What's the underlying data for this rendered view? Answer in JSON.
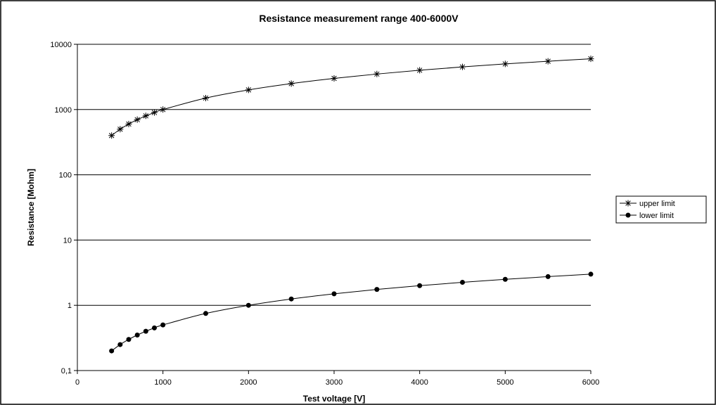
{
  "chart_data": {
    "type": "line",
    "title": "Resistance measurement range 400-6000V",
    "xlabel": "Test voltage [V]",
    "ylabel": "Resistance [Mohm]",
    "xlim": [
      0,
      6000
    ],
    "ylim": [
      0.1,
      10000
    ],
    "yscale": "log",
    "grid": "horizontal major gridlines",
    "legend": "right",
    "x_ticks": [
      "0",
      "1000",
      "2000",
      "3000",
      "4000",
      "5000",
      "6000"
    ],
    "x_tick_values": [
      0,
      1000,
      2000,
      3000,
      4000,
      5000,
      6000
    ],
    "y_ticks": [
      "0,1",
      "1",
      "10",
      "100",
      "1000",
      "10000"
    ],
    "y_tick_values": [
      0.1,
      1,
      10,
      100,
      1000,
      10000
    ],
    "x": [
      400,
      500,
      600,
      700,
      800,
      900,
      1000,
      1500,
      2000,
      2500,
      3000,
      3500,
      4000,
      4500,
      5000,
      5500,
      6000
    ],
    "series": [
      {
        "name": "upper limit",
        "marker": "asterisk",
        "values": [
          400,
          500,
          600,
          700,
          800,
          900,
          1000,
          1500,
          2000,
          2500,
          3000,
          3500,
          4000,
          4500,
          5000,
          5500,
          6000
        ]
      },
      {
        "name": "lower limit",
        "marker": "circle",
        "values": [
          0.2,
          0.25,
          0.3,
          0.35,
          0.4,
          0.45,
          0.5,
          0.75,
          1,
          1.25,
          1.5,
          1.75,
          2,
          2.25,
          2.5,
          2.75,
          3
        ]
      }
    ]
  }
}
